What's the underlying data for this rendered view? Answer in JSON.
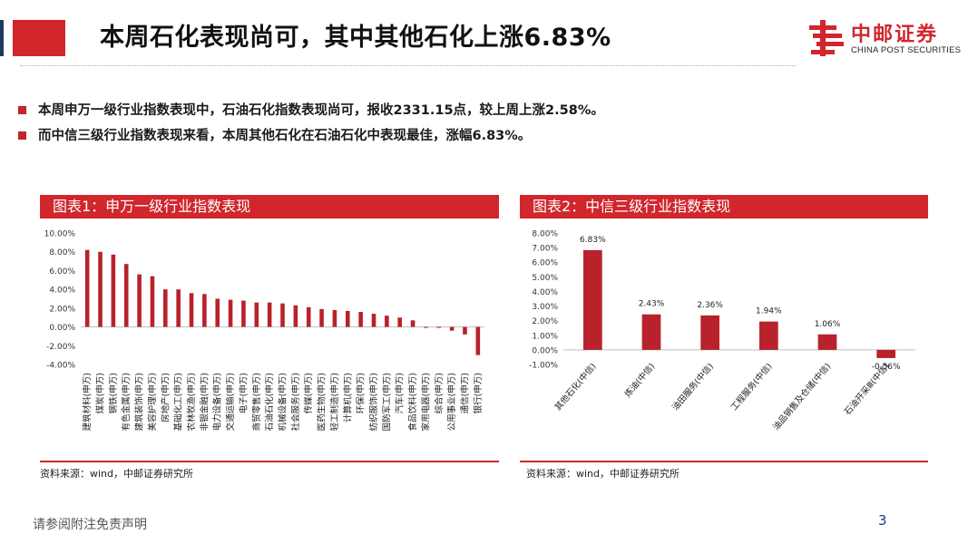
{
  "header": {
    "title": "本周石化表现尚可，其中其他石化上涨6.83%",
    "logo_cn": "中邮证券",
    "logo_en": "CHINA POST SECURITIES"
  },
  "bullets": [
    "本周申万一级行业指数表现中，石油石化指数表现尚可，报收2331.15点，较上周上涨2.58%。",
    "而中信三级行业指数表现来看，本周其他石化在石油石化中表现最佳，涨幅6.83%。"
  ],
  "colors": {
    "accent": "#d0262c",
    "bar": "#b8222a",
    "dark": "#1f3a5c"
  },
  "chart_data": [
    {
      "type": "bar",
      "title": "图表1：申万一级行业指数表现",
      "source": "资料来源：wind，中邮证券研究所",
      "ylim": [
        -0.04,
        0.1
      ],
      "yticks": [
        -0.04,
        -0.02,
        0.0,
        0.02,
        0.04,
        0.06,
        0.08,
        0.1
      ],
      "ytick_labels": [
        "-4.00%",
        "-2.00%",
        "0.00%",
        "2.00%",
        "4.00%",
        "6.00%",
        "8.00%",
        "10.00%"
      ],
      "categories": [
        "建筑材料(申万)",
        "煤炭(申万)",
        "钢铁(申万)",
        "有色金属(申万)",
        "建筑装饰(申万)",
        "美容护理(申万)",
        "房地产(申万)",
        "基础化工(申万)",
        "农林牧渔(申万)",
        "非银金融(申万)",
        "电力设备(申万)",
        "交通运输(申万)",
        "电子(申万)",
        "商贸零售(申万)",
        "石油石化(申万)",
        "机械设备(申万)",
        "社会服务(申万)",
        "传媒(申万)",
        "医药生物(申万)",
        "轻工制造(申万)",
        "计算机(申万)",
        "环保(申万)",
        "纺织服饰(申万)",
        "国防军工(申万)",
        "汽车(申万)",
        "食品饮料(申万)",
        "家用电器(申万)",
        "综合(申万)",
        "公用事业(申万)",
        "通信(申万)",
        "银行(申万)"
      ],
      "values": [
        0.082,
        0.08,
        0.077,
        0.067,
        0.056,
        0.054,
        0.04,
        0.04,
        0.036,
        0.035,
        0.03,
        0.029,
        0.028,
        0.026,
        0.026,
        0.025,
        0.023,
        0.021,
        0.019,
        0.018,
        0.017,
        0.016,
        0.014,
        0.012,
        0.01,
        0.007,
        -0.001,
        -0.001,
        -0.004,
        -0.008,
        -0.03
      ]
    },
    {
      "type": "bar",
      "title": "图表2：中信三级行业指数表现",
      "source": "资料来源：wind，中邮证券研究所",
      "ylim": [
        -0.01,
        0.08
      ],
      "yticks": [
        -0.01,
        0.0,
        0.01,
        0.02,
        0.03,
        0.04,
        0.05,
        0.06,
        0.07,
        0.08
      ],
      "ytick_labels": [
        "-1.00%",
        "0.00%",
        "1.00%",
        "2.00%",
        "3.00%",
        "4.00%",
        "5.00%",
        "6.00%",
        "7.00%",
        "8.00%"
      ],
      "categories": [
        "其他石化(中信)",
        "炼油(中信)",
        "油田服务(中信)",
        "工程服务(中信)",
        "油品销售及仓储(中信)",
        "石油开采Ⅲ(中信)"
      ],
      "values": [
        0.0683,
        0.0243,
        0.0236,
        0.0194,
        0.0106,
        -0.0056
      ],
      "data_labels": [
        "6.83%",
        "2.43%",
        "2.36%",
        "1.94%",
        "1.06%",
        "-0.56%"
      ]
    }
  ],
  "footer": {
    "disclaimer": "请参阅附注免责声明",
    "page_number": "3"
  }
}
